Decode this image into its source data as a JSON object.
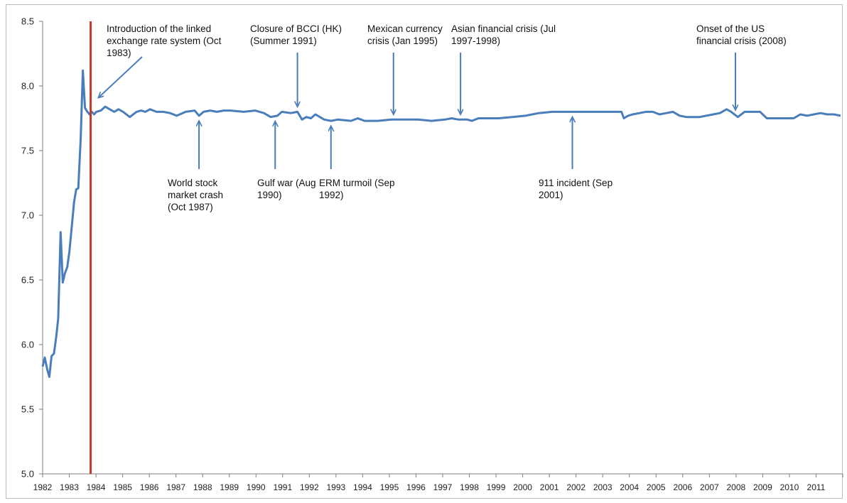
{
  "chart_data": {
    "type": "line",
    "title": "",
    "xlabel": "",
    "ylabel": "",
    "ylim": [
      5.0,
      8.5
    ],
    "yticks": [
      "5.0",
      "5.5",
      "6.0",
      "6.5",
      "7.0",
      "7.5",
      "8.0",
      "8.5"
    ],
    "xlim": [
      1982.0,
      2011.83
    ],
    "xticks": [
      "1982",
      "1983",
      "1984",
      "1985",
      "1986",
      "1987",
      "1988",
      "1989",
      "1990",
      "1991",
      "1992",
      "1993",
      "1994",
      "1995",
      "1996",
      "1997",
      "1998",
      "1999",
      "2000",
      "2001",
      "2002",
      "2003",
      "2004",
      "2005",
      "2006",
      "2007",
      "2008",
      "2009",
      "2010",
      "2011"
    ],
    "grid": false,
    "legend": "none",
    "colors": {
      "series": "#4a7ebb",
      "vline": "#c0392b",
      "arrow": "#4a7ebb"
    },
    "vline": {
      "x": 1983.79,
      "label": "Introduction of the linked exchange rate system (Oct 1983)"
    },
    "series": [
      {
        "x": [
          1982.0,
          1982.08,
          1982.17,
          1982.25,
          1982.33,
          1982.42,
          1982.5,
          1982.58,
          1982.67,
          1982.75,
          1982.83,
          1982.92,
          1983.0,
          1983.08,
          1983.17,
          1983.25,
          1983.33,
          1983.42,
          1983.5,
          1983.58,
          1983.67,
          1983.75,
          1983.83,
          1983.92,
          1984.0,
          1984.17,
          1984.33,
          1984.5,
          1984.67,
          1984.83,
          1985.0,
          1985.25,
          1985.5,
          1985.67,
          1985.83,
          1986.0,
          1986.25,
          1986.5,
          1986.75,
          1987.0,
          1987.33,
          1987.67,
          1987.83,
          1988.0,
          1988.25,
          1988.5,
          1988.75,
          1989.0,
          1989.5,
          1989.92,
          1990.25,
          1990.5,
          1990.75,
          1990.92,
          1991.25,
          1991.5,
          1991.67,
          1991.83,
          1992.0,
          1992.17,
          1992.5,
          1992.75,
          1993.0,
          1993.5,
          1993.75,
          1994.0,
          1994.5,
          1995.0,
          1995.5,
          1996.0,
          1996.5,
          1997.0,
          1997.25,
          1997.5,
          1997.83,
          1998.0,
          1998.25,
          1998.5,
          1999.0,
          1999.5,
          2000.0,
          2000.5,
          2001.0,
          2002.0,
          2003.0,
          2003.58,
          2003.67,
          2003.83,
          2004.0,
          2004.25,
          2004.5,
          2004.75,
          2005.0,
          2005.25,
          2005.5,
          2005.75,
          2006.0,
          2006.5,
          2007.0,
          2007.25,
          2007.5,
          2007.67,
          2007.92,
          2008.17,
          2008.5,
          2008.75,
          2009.0,
          2009.25,
          2009.5,
          2010.0,
          2010.25,
          2010.5,
          2010.75,
          2011.0,
          2011.25,
          2011.5,
          2011.75
        ],
        "y": [
          5.83,
          5.9,
          5.81,
          5.75,
          5.91,
          5.93,
          6.05,
          6.2,
          6.87,
          6.48,
          6.55,
          6.6,
          6.72,
          6.9,
          7.1,
          7.2,
          7.21,
          7.6,
          8.12,
          7.83,
          7.8,
          7.78,
          7.8,
          7.78,
          7.8,
          7.81,
          7.84,
          7.82,
          7.8,
          7.82,
          7.8,
          7.76,
          7.8,
          7.81,
          7.8,
          7.82,
          7.8,
          7.8,
          7.79,
          7.77,
          7.8,
          7.81,
          7.77,
          7.8,
          7.81,
          7.8,
          7.81,
          7.81,
          7.8,
          7.81,
          7.79,
          7.76,
          7.77,
          7.8,
          7.79,
          7.8,
          7.74,
          7.76,
          7.75,
          7.78,
          7.74,
          7.73,
          7.74,
          7.73,
          7.75,
          7.73,
          7.73,
          7.74,
          7.74,
          7.74,
          7.73,
          7.74,
          7.75,
          7.74,
          7.74,
          7.73,
          7.75,
          7.75,
          7.75,
          7.76,
          7.77,
          7.79,
          7.8,
          7.8,
          7.8,
          7.8,
          7.75,
          7.77,
          7.78,
          7.79,
          7.8,
          7.8,
          7.78,
          7.79,
          7.8,
          7.77,
          7.76,
          7.76,
          7.78,
          7.79,
          7.82,
          7.8,
          7.76,
          7.8,
          7.8,
          7.8,
          7.75,
          7.75,
          7.75,
          7.75,
          7.78,
          7.77,
          7.78,
          7.79,
          7.78,
          7.78,
          7.77
        ]
      }
    ],
    "annotations": [
      {
        "lines": [
          "World stock",
          "market crash",
          "(Oct 1987)"
        ],
        "x": 1987.83,
        "direction": "up"
      },
      {
        "lines": [
          "Gulf war (Aug",
          "1990)"
        ],
        "x": 1990.67,
        "direction": "up"
      },
      {
        "lines": [
          "Closure of BCCI (HK)",
          "(Summer 1991)"
        ],
        "x": 1991.5,
        "direction": "down"
      },
      {
        "lines": [
          "ERM turmoil (Sep",
          "1992)"
        ],
        "x": 1992.75,
        "direction": "up"
      },
      {
        "lines": [
          "Mexican currency",
          "crisis (Jan 1995)"
        ],
        "x": 1995.08,
        "direction": "down"
      },
      {
        "lines": [
          "Asian financial crisis (Jul",
          "1997-1998)"
        ],
        "x": 1997.58,
        "direction": "down"
      },
      {
        "lines": [
          "911 incident (Sep",
          "2001)"
        ],
        "x": 2001.75,
        "direction": "up"
      },
      {
        "lines": [
          "Onset of the US",
          "financial crisis (2008)"
        ],
        "x": 2007.83,
        "direction": "down"
      }
    ],
    "vline_label_lines": [
      "Introduction of the linked",
      "exchange rate system (Oct",
      "1983)"
    ]
  }
}
